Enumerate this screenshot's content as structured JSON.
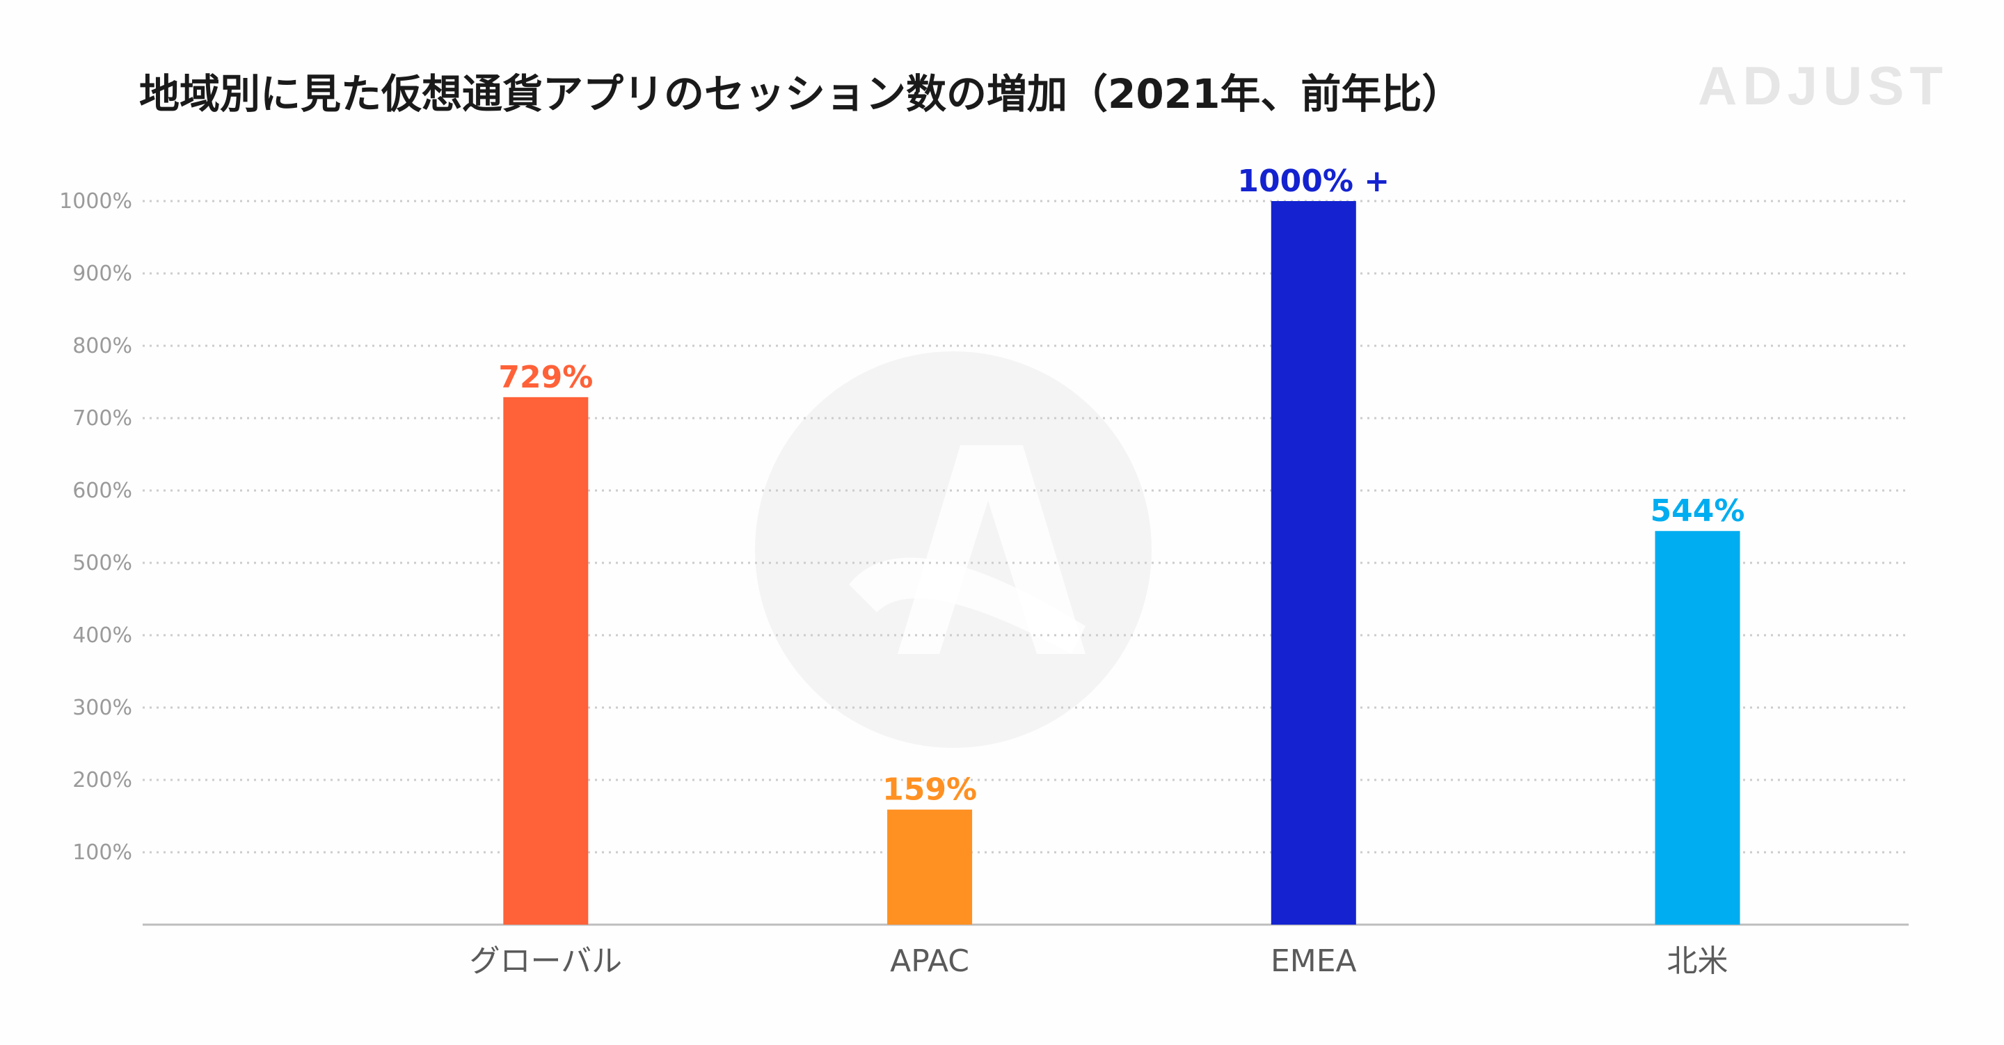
{
  "brand": "ADJUST",
  "chart_data": {
    "type": "bar",
    "title": "地域別に見た仮想通貨アプリのセッション数の増加（2021年、前年比）",
    "xlabel": "",
    "ylabel": "",
    "categories": [
      "グローバル",
      "APAC",
      "EMEA",
      "北米"
    ],
    "values": [
      729,
      159,
      1000,
      544
    ],
    "data_labels": [
      "729%",
      "159%",
      "1000% +",
      "544%"
    ],
    "colors": [
      "#ff6138",
      "#ff9022",
      "#1423cf",
      "#00adf0"
    ],
    "ylim": [
      0,
      1000
    ],
    "yticks": [
      100,
      200,
      300,
      400,
      500,
      600,
      700,
      800,
      900,
      1000
    ],
    "ytick_labels": [
      "100%",
      "200%",
      "300%",
      "400%",
      "500%",
      "600%",
      "700%",
      "800%",
      "900%",
      "1000%"
    ],
    "grid": true,
    "legend": "none"
  }
}
